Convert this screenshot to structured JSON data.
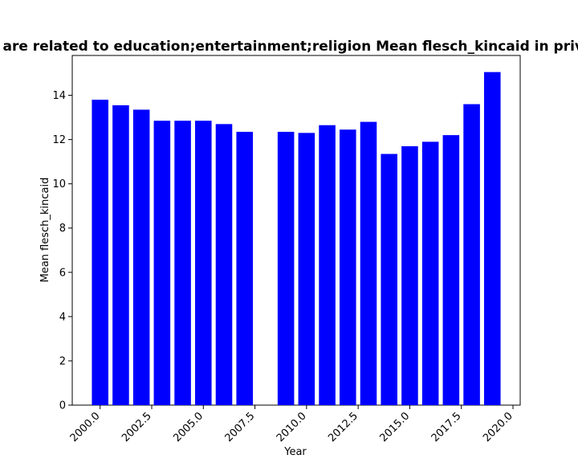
{
  "chart_data": {
    "type": "bar",
    "title": "s are related to education;entertainment;religion Mean flesch_kincaid in privac",
    "xlabel": "Year",
    "ylabel": "Mean flesch_kincaid",
    "bar_color": "#0000ff",
    "xlim": [
      1998.65,
      2020.35
    ],
    "ylim": [
      0,
      15.8
    ],
    "x_ticks": [
      {
        "value": 2000.0,
        "label": "2000.0"
      },
      {
        "value": 2002.5,
        "label": "2002.5"
      },
      {
        "value": 2005.0,
        "label": "2005.0"
      },
      {
        "value": 2007.5,
        "label": "2007.5"
      },
      {
        "value": 2010.0,
        "label": "2010.0"
      },
      {
        "value": 2012.5,
        "label": "2012.5"
      },
      {
        "value": 2015.0,
        "label": "2015.0"
      },
      {
        "value": 2017.5,
        "label": "2017.5"
      },
      {
        "value": 2020.0,
        "label": "2020.0"
      }
    ],
    "y_ticks": [
      {
        "value": 0,
        "label": "0"
      },
      {
        "value": 2,
        "label": "2"
      },
      {
        "value": 4,
        "label": "4"
      },
      {
        "value": 6,
        "label": "6"
      },
      {
        "value": 8,
        "label": "8"
      },
      {
        "value": 10,
        "label": "10"
      },
      {
        "value": 12,
        "label": "12"
      },
      {
        "value": 14,
        "label": "14"
      }
    ],
    "x": [
      2000,
      2001,
      2002,
      2003,
      2004,
      2005,
      2006,
      2007,
      2009,
      2010,
      2011,
      2012,
      2013,
      2014,
      2015,
      2016,
      2017,
      2018,
      2019
    ],
    "values": [
      13.8,
      13.55,
      13.35,
      12.85,
      12.85,
      12.85,
      12.7,
      12.35,
      12.35,
      12.3,
      12.65,
      12.45,
      12.8,
      11.35,
      11.7,
      11.9,
      12.2,
      13.6,
      15.05
    ],
    "bar_width": 0.8,
    "grid": false,
    "legend": "none"
  }
}
